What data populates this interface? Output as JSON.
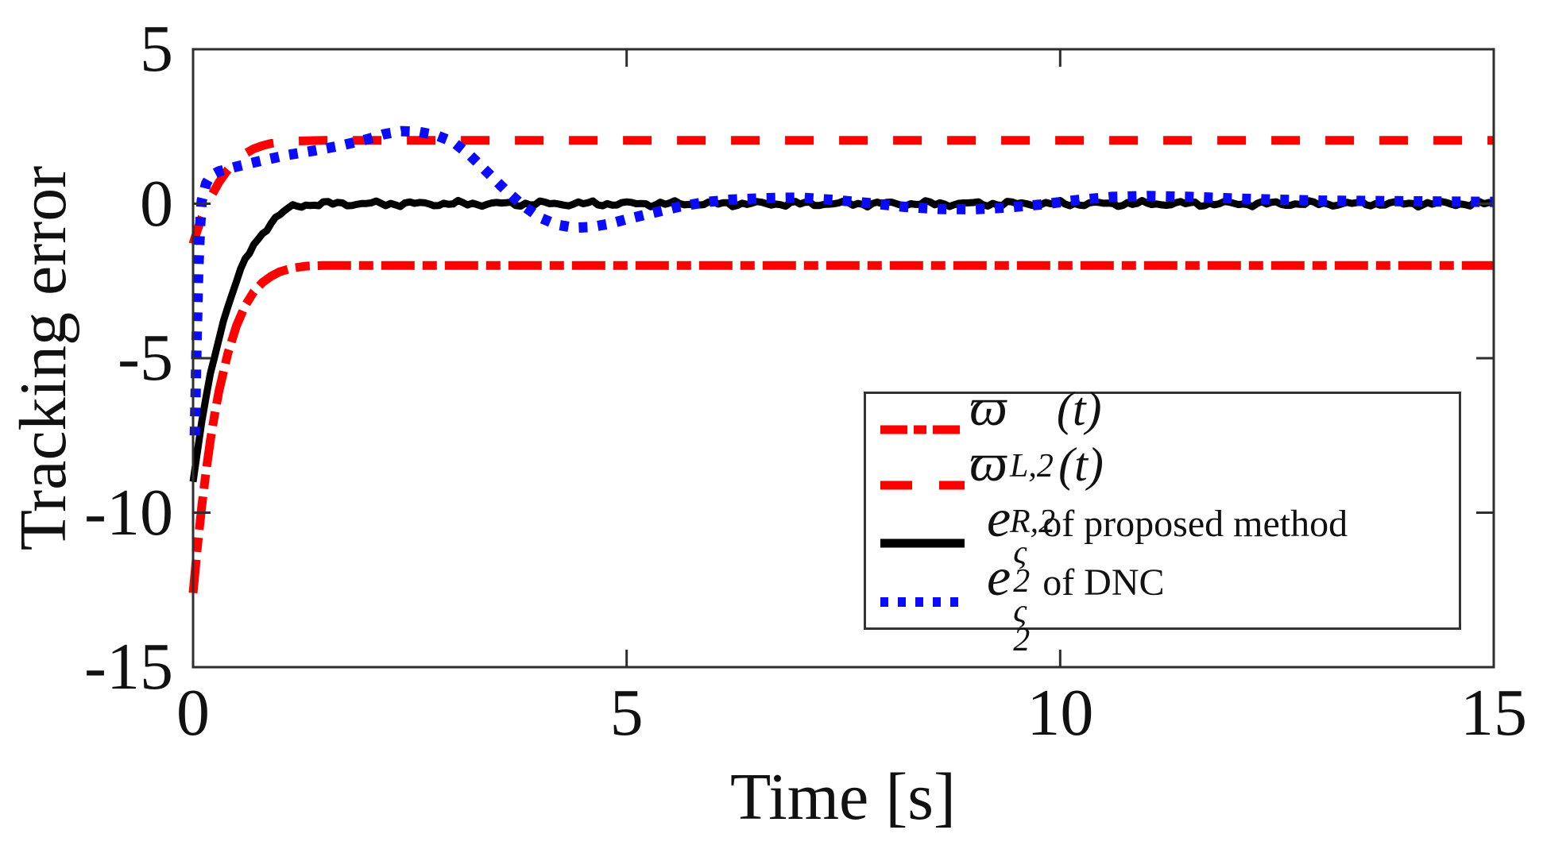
{
  "figure": {
    "background": "#ffffff",
    "frame_color": "#2e2e2e",
    "text_color": "#111111"
  },
  "chart_data": {
    "type": "line",
    "title": "",
    "xlabel": "Time [s]",
    "ylabel": "Tracking error",
    "xlim": [
      0,
      15
    ],
    "ylim": [
      -15,
      5
    ],
    "xticks": [
      0,
      5,
      10,
      15
    ],
    "yticks": [
      5,
      0,
      -5,
      -10,
      -15
    ],
    "grid": false,
    "legend_position": "lower right",
    "series": [
      {
        "name": "omega_L2",
        "label": "ϖ_{L,2}(t)",
        "label_main": "ϖ",
        "label_sub": "L,2",
        "label_sup": "",
        "label_rest": "(t)",
        "color": "#ff0000",
        "style": "dashdot",
        "x": [
          0,
          0.05,
          0.1,
          0.15,
          0.2,
          0.25,
          0.3,
          0.4,
          0.5,
          0.6,
          0.7,
          0.8,
          0.9,
          1.0,
          1.15,
          1.3,
          1.5,
          2,
          15
        ],
        "y": [
          -12.6,
          -11.1,
          -9.8,
          -8.65,
          -7.65,
          -6.8,
          -6.05,
          -4.85,
          -3.95,
          -3.3,
          -2.85,
          -2.55,
          -2.35,
          -2.2,
          -2.08,
          -2.02,
          -2.0,
          -2.0,
          -2.0
        ]
      },
      {
        "name": "omega_R2",
        "label": "ϖ_{R,2}(t)",
        "label_main": "ϖ",
        "label_sub": "R,2",
        "label_sup": "",
        "label_rest": "(t)",
        "color": "#ff0000",
        "style": "dashed",
        "x": [
          0,
          0.05,
          0.1,
          0.15,
          0.2,
          0.3,
          0.4,
          0.5,
          0.6,
          0.7,
          0.8,
          0.9,
          1.0,
          1.2,
          1.5,
          2,
          15
        ],
        "y": [
          -1.3,
          -0.85,
          -0.45,
          -0.1,
          0.2,
          0.7,
          1.1,
          1.4,
          1.62,
          1.78,
          1.88,
          1.95,
          1.99,
          2.03,
          2.05,
          2.05,
          2.05
        ]
      },
      {
        "name": "e2_proposed",
        "label": "e_2^ς of proposed method",
        "label_main": "e",
        "label_sub": "2",
        "label_sup": "ς",
        "label_rest": "of proposed method",
        "color": "#000000",
        "style": "solid",
        "noisy": true,
        "x": [
          0,
          0.05,
          0.1,
          0.15,
          0.2,
          0.25,
          0.3,
          0.4,
          0.5,
          0.6,
          0.7,
          0.8,
          0.9,
          1.0,
          1.1,
          1.2,
          1.35,
          1.5,
          2,
          4,
          6,
          8,
          10,
          12,
          15
        ],
        "y": [
          -9.0,
          -8.0,
          -7.1,
          -6.3,
          -5.55,
          -4.9,
          -4.3,
          -3.3,
          -2.5,
          -1.85,
          -1.35,
          -0.95,
          -0.6,
          -0.35,
          -0.17,
          -0.07,
          -0.02,
          0,
          0,
          0,
          0,
          0,
          0,
          0,
          0
        ]
      },
      {
        "name": "e2_dnc",
        "label": "e_2^ς of DNC",
        "label_main": "e",
        "label_sub": "2",
        "label_sup": "ς",
        "label_rest": "of DNC",
        "color": "#0a0aff",
        "style": "dotted",
        "x": [
          0.02,
          0.04,
          0.06,
          0.08,
          0.1,
          0.15,
          0.2,
          0.3,
          0.5,
          0.8,
          1.1,
          1.4,
          1.7,
          2.0,
          2.2,
          2.4,
          2.6,
          2.8,
          3.0,
          3.2,
          3.4,
          3.6,
          3.8,
          4.0,
          4.2,
          4.4,
          4.6,
          4.8,
          5.0,
          5.3,
          5.6,
          5.9,
          6.2,
          6.6,
          7.0,
          7.4,
          7.8,
          8.2,
          8.6,
          9.0,
          9.4,
          9.8,
          10.2,
          10.6,
          11.0,
          11.5,
          12.0,
          12.5,
          13.0,
          13.5,
          14.0,
          14.5,
          15.0
        ],
        "y": [
          -7.5,
          -4.5,
          -2.2,
          -0.8,
          0.1,
          0.65,
          0.9,
          1.05,
          1.2,
          1.4,
          1.58,
          1.72,
          1.88,
          2.08,
          2.25,
          2.35,
          2.33,
          2.22,
          2.0,
          1.55,
          1.0,
          0.45,
          -0.05,
          -0.45,
          -0.68,
          -0.78,
          -0.75,
          -0.65,
          -0.5,
          -0.3,
          -0.1,
          0.05,
          0.13,
          0.18,
          0.2,
          0.12,
          0.02,
          -0.1,
          -0.17,
          -0.18,
          -0.12,
          -0.02,
          0.12,
          0.22,
          0.25,
          0.22,
          0.17,
          0.13,
          0.1,
          0.09,
          0.08,
          0.07,
          0.06
        ]
      }
    ]
  }
}
